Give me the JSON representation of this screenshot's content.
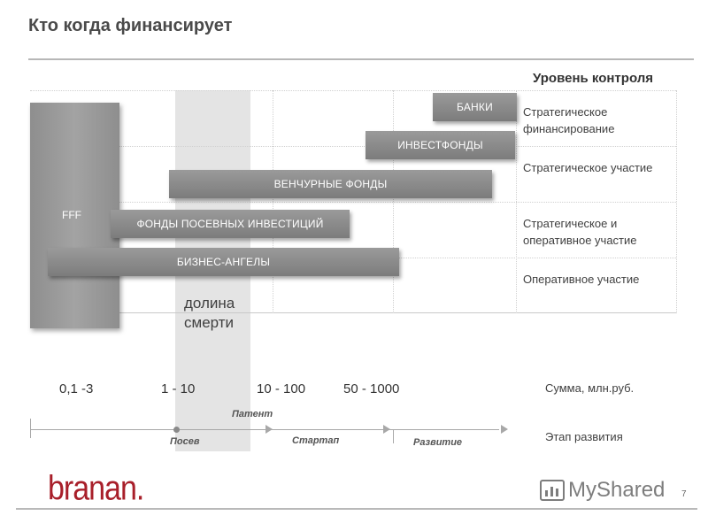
{
  "title": "Кто когда финансирует",
  "control": {
    "heading": "Уровень контроля",
    "levels": [
      "Стратегическое финансирование",
      "Стратегическое участие",
      "Стратегическое и оперативное участие",
      "Оперативное участие"
    ]
  },
  "investors": {
    "banks": "БАНКИ",
    "funds": "ИНВЕСТФОНДЫ",
    "venture": "ВЕНЧУРНЫЕ ФОНДЫ",
    "fff": "FFF",
    "seed": "ФОНДЫ ПОСЕВНЫХ ИНВЕСТИЦИЙ",
    "angels": "БИЗНЕС-АНГЕЛЫ"
  },
  "valley": "долина смерти",
  "amounts": {
    "ranges": [
      "0,1 -3",
      "1 - 10",
      "10 - 100",
      "50 - 1000"
    ],
    "label": "Сумма, млн.руб."
  },
  "stages": {
    "label": "Этап развития",
    "patent": "Патент",
    "sowing": "Посев",
    "startup": "Стартап",
    "development": "Развитие"
  },
  "footer": {
    "logo": "branan.",
    "watermark": "MyShared",
    "page": "7"
  },
  "colors": {
    "bar": "#888888",
    "valley": "#e4e4e4",
    "brand": "#a81f2a"
  }
}
